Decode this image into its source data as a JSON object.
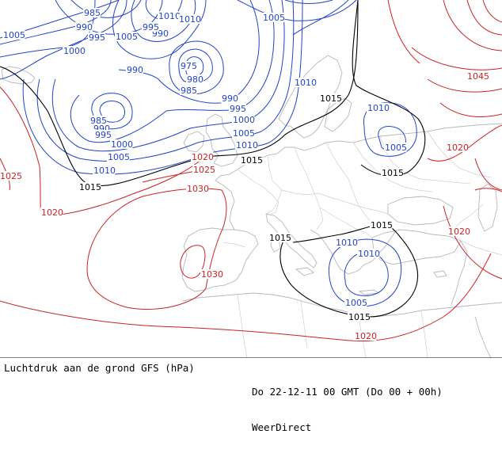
{
  "footer": {
    "caption": "Luchtdruk aan de grond GFS (hPa)",
    "valid_time": "Do 22-12-11 00 GMT (Do 00 + 00h)",
    "source": "WeerDirect"
  },
  "colors": {
    "low": "#2244cc",
    "high": "#cc2222",
    "neutral": "#000000",
    "land_outline": "#b8b8b8",
    "background": "#ffffff"
  },
  "isobar_labels": {
    "blue": [
      "985",
      "1010",
      "990",
      "995",
      "1005",
      "990",
      "995",
      "1000",
      "990",
      "1005",
      "1010",
      "975",
      "980",
      "985",
      "990",
      "995",
      "1000",
      "1005",
      "1010",
      "985",
      "990",
      "995",
      "1000",
      "1005",
      "1010",
      "1010",
      "1005",
      "1010",
      "1005",
      "1010",
      "1010",
      "1005"
    ],
    "black": [
      "1015",
      "1015",
      "1015",
      "1015",
      "1015",
      "1015",
      "1015"
    ],
    "red": [
      "1020",
      "1025",
      "1030",
      "1020",
      "1030",
      "1045",
      "1020",
      "1020",
      "1020",
      "1025"
    ]
  }
}
